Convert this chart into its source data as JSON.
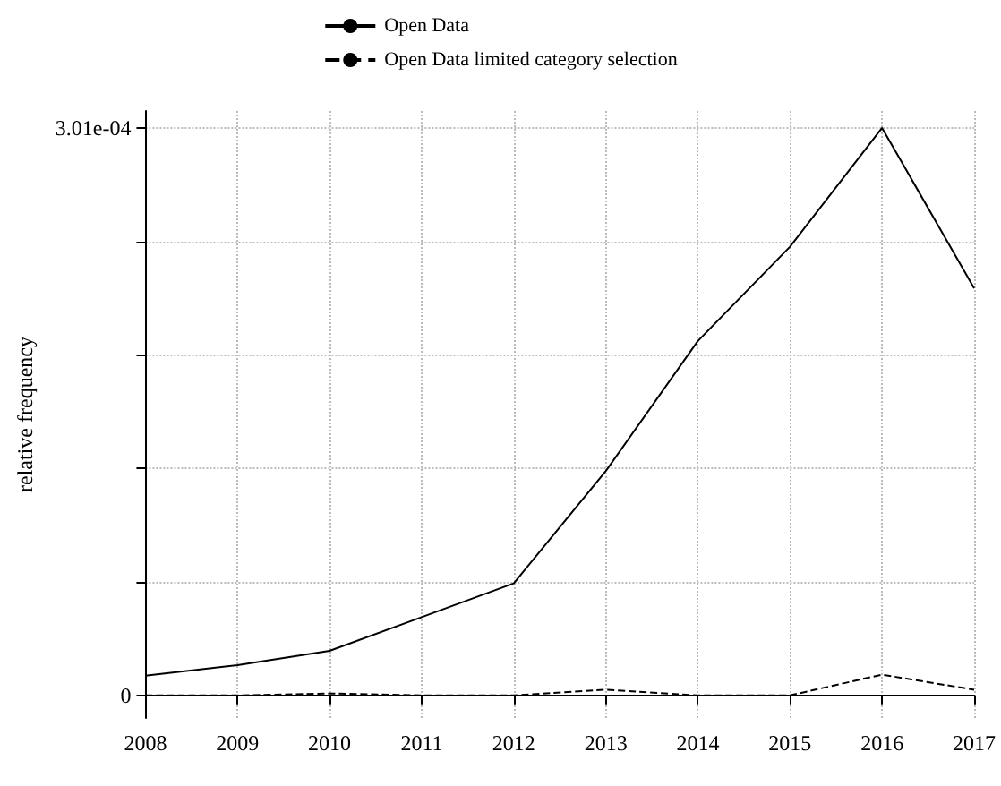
{
  "chart_data": {
    "type": "line",
    "ylabel": "relative frequency",
    "categories": [
      "2008",
      "2009",
      "2010",
      "2011",
      "2012",
      "2013",
      "2014",
      "2015",
      "2016",
      "2017"
    ],
    "series": [
      {
        "name": "Open Data",
        "color": "#000000",
        "line_style": "solid",
        "values": [
          1.04e-05,
          1.6e-05,
          2.36e-05,
          4.15e-05,
          5.94e-05,
          0.000119,
          0.000188,
          0.000238,
          0.000301,
          0.000216
        ]
      },
      {
        "name": "Open Data limited category selection",
        "color": "#000000",
        "line_style": "dashed",
        "values": [
          0,
          0,
          1e-06,
          0,
          0,
          3e-06,
          0,
          0,
          1.1e-05,
          3e-06
        ]
      }
    ],
    "ylim": [
      -1.2e-05,
      0.00031
    ],
    "yticks": [
      0,
      {
        "value": 6.02e-05,
        "label": null
      },
      {
        "value": 0.0001204,
        "label": null
      },
      {
        "value": 0.0001806,
        "label": null
      },
      {
        "value": 0.0002408,
        "label": null
      },
      {
        "value": 0.000301,
        "label": "3.01e-04"
      }
    ],
    "grid": true,
    "legend": "top",
    "marker": "none"
  }
}
